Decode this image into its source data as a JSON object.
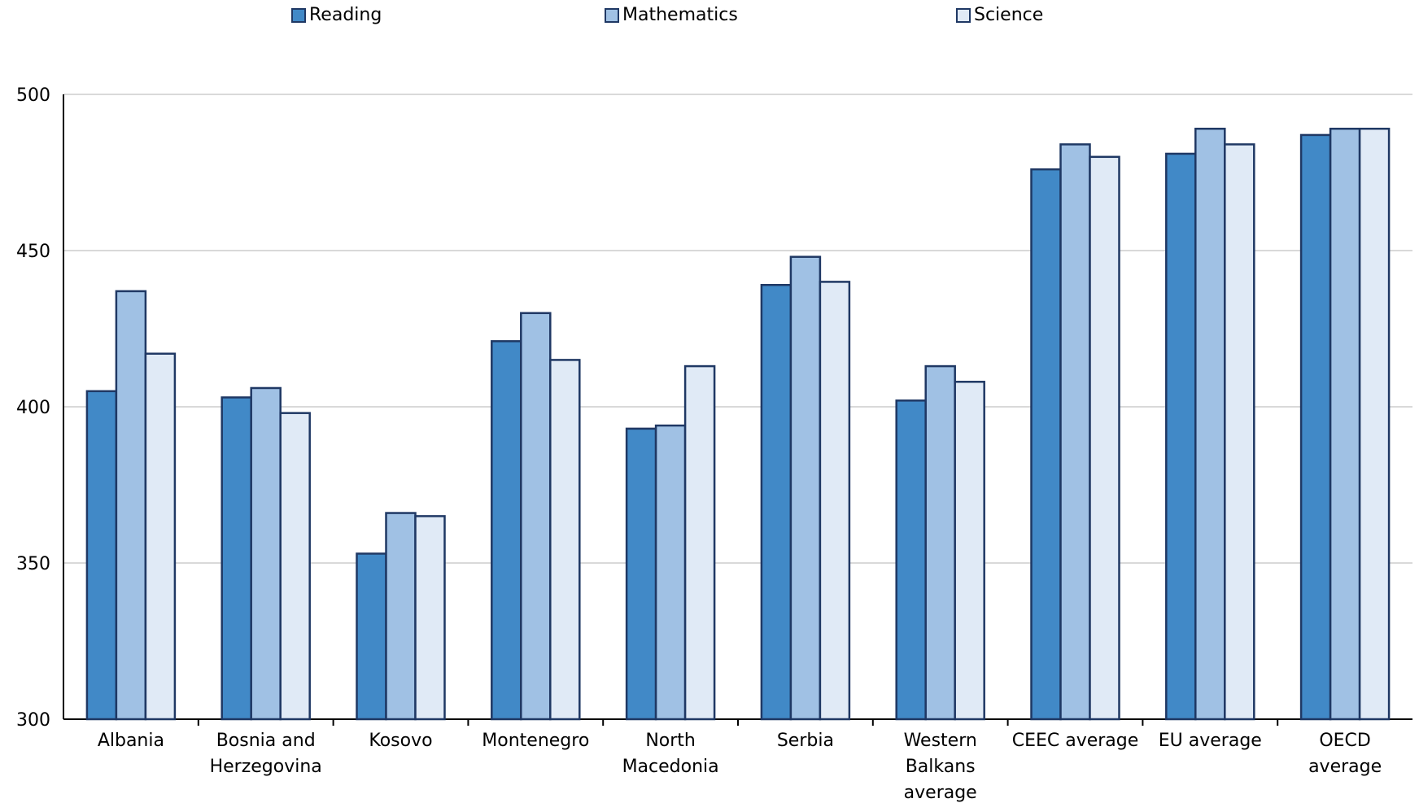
{
  "chart_data": {
    "type": "bar",
    "title": "",
    "xlabel": "",
    "ylabel": "",
    "ylim": [
      300,
      500
    ],
    "yticks": [
      300,
      350,
      400,
      450,
      500
    ],
    "grid": true,
    "legend_position": "top",
    "categories": [
      [
        "Albania"
      ],
      [
        "Bosnia and",
        "Herzegovina"
      ],
      [
        "Kosovo"
      ],
      [
        "Montenegro"
      ],
      [
        "North",
        "Macedonia"
      ],
      [
        "Serbia"
      ],
      [
        "Western",
        "Balkans",
        "average"
      ],
      [
        "CEEC average"
      ],
      [
        "EU average"
      ],
      [
        "OECD",
        "average"
      ]
    ],
    "series": [
      {
        "name": "Reading",
        "color": "#4189c7",
        "values": [
          405,
          403,
          353,
          421,
          393,
          439,
          402,
          476,
          481,
          487
        ]
      },
      {
        "name": "Mathematics",
        "color": "#a0c1e4",
        "values": [
          437,
          406,
          366,
          430,
          394,
          448,
          413,
          484,
          489,
          489
        ]
      },
      {
        "name": "Science",
        "color": "#e0eaf6",
        "values": [
          417,
          398,
          365,
          415,
          413,
          440,
          408,
          480,
          484,
          489
        ]
      }
    ],
    "bar_border_color": "#1f3864",
    "grid_color": "#d9d9d9"
  }
}
